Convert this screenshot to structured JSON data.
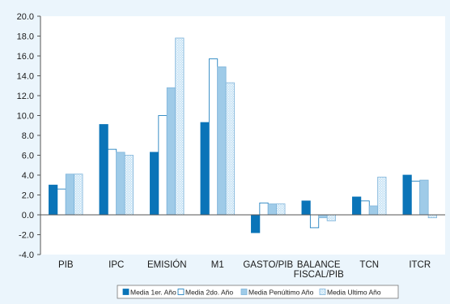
{
  "chart_data": {
    "type": "bar",
    "categories": [
      "PIB",
      "IPC",
      "EMISIÓN",
      "M1",
      "GASTO/PIB",
      "BALANCE FISCAL/PIB",
      "TCN",
      "ITCR"
    ],
    "category_lines": [
      [
        "PIB"
      ],
      [
        "IPC"
      ],
      [
        "EMISIÓN"
      ],
      [
        "M1"
      ],
      [
        "GASTO/PIB"
      ],
      [
        "BALANCE",
        "FISCAL/PIB"
      ],
      [
        "TCN"
      ],
      [
        "ITCR"
      ]
    ],
    "series": [
      {
        "name": "Media 1er. Año",
        "color": "#0a74b8",
        "values": [
          3.0,
          9.1,
          6.3,
          9.3,
          -1.8,
          1.4,
          1.8,
          4.0
        ]
      },
      {
        "name": "Media 2do. Año",
        "color": "#ffffff",
        "values": [
          2.6,
          6.6,
          10.0,
          15.7,
          1.2,
          -1.3,
          1.4,
          3.4
        ]
      },
      {
        "name": "Media Penúltimo Año",
        "color": "#9fcbe8",
        "values": [
          4.1,
          6.3,
          12.8,
          14.9,
          1.1,
          -0.3,
          0.9,
          3.5
        ]
      },
      {
        "name": "Media Ultimo Año",
        "color": "#c7e3f5",
        "values": [
          4.1,
          6.0,
          17.8,
          13.3,
          1.1,
          -0.6,
          3.8,
          -0.3
        ]
      }
    ],
    "ylim": [
      -4.0,
      20.0
    ],
    "yticks": [
      -4.0,
      -2.0,
      0.0,
      2.0,
      4.0,
      6.0,
      8.0,
      10.0,
      12.0,
      14.0,
      16.0,
      18.0,
      20.0
    ],
    "title": "",
    "xlabel": "",
    "ylabel": "",
    "grid": false,
    "legend_position": "bottom"
  }
}
